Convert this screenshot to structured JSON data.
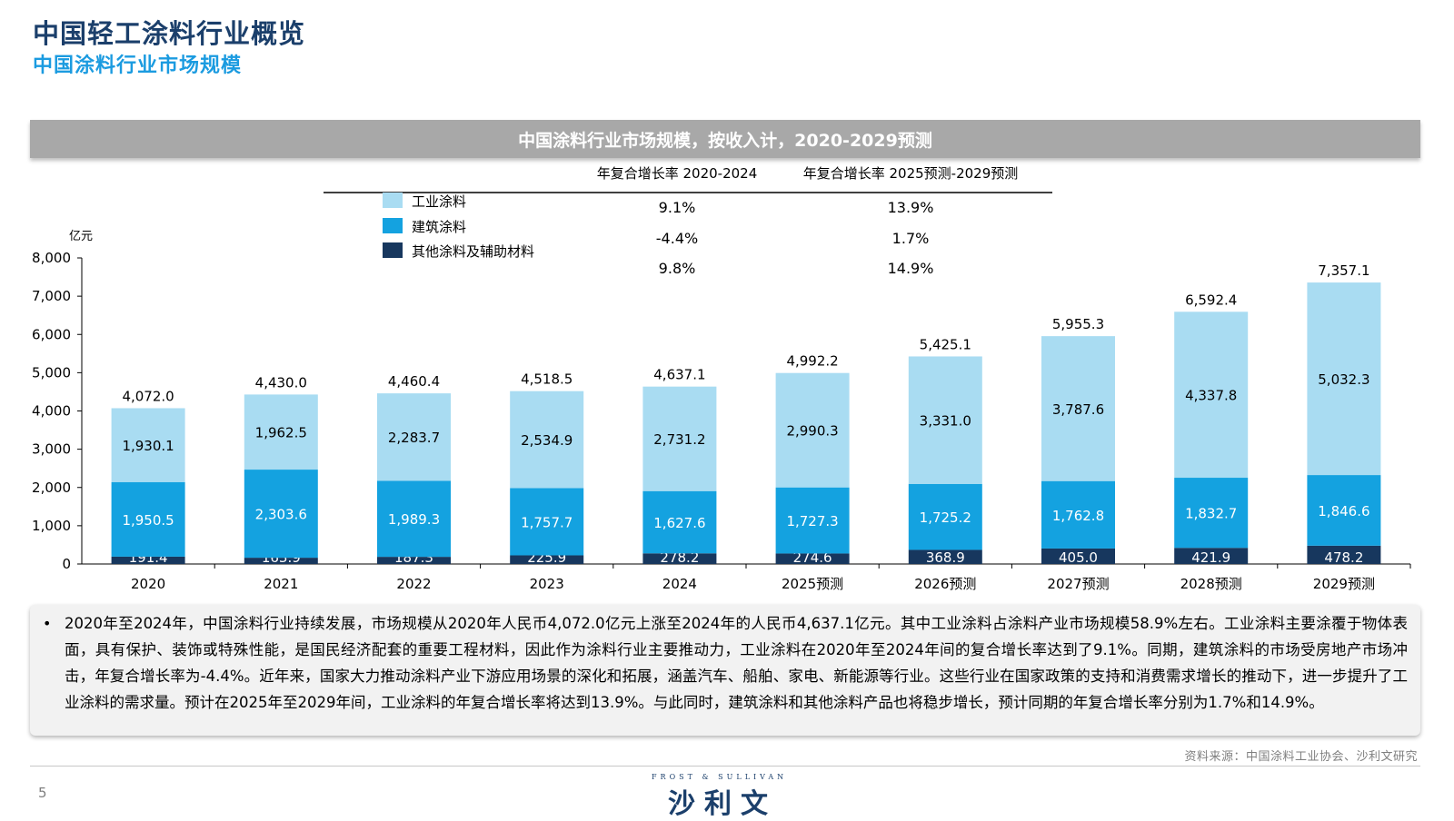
{
  "page": {
    "title": "中国轻工涂料行业概览",
    "subtitle": "中国涂料行业市场规模",
    "page_number": "5",
    "source": "资料来源：中国涂料工业协会、沙利文研究",
    "logo_top": "FROST & SULLIVAN",
    "logo_main": "沙利文"
  },
  "notes": {
    "bullet": "•",
    "text": "2020年至2024年，中国涂料行业持续发展，市场规模从2020年人民币4,072.0亿元上涨至2024年的人民币4,637.1亿元。其中工业涂料占涂料产业市场规模58.9%左右。工业涂料主要涂覆于物体表面，具有保护、装饰或特殊性能，是国民经济配套的重要工程材料，因此作为涂料行业主要推动力，工业涂料在2020年至2024年间的复合增长率达到了9.1%。同期，建筑涂料的市场受房地产市场冲击，年复合增长率为-4.4%。近年来，国家大力推动涂料产业下游应用场景的深化和拓展，涵盖汽车、船舶、家电、新能源等行业。这些行业在国家政策的支持和消费需求增长的推动下，进一步提升了工业涂料的需求量。预计在2025年至2029年间，工业涂料的年复合增长率将达到13.9%。与此同时，建筑涂料和其他涂料产品也将稳步增长，预计同期的年复合增长率分别为1.7%和14.9%。"
  },
  "chart_data": {
    "type": "bar",
    "stacked": true,
    "title": "中国涂料行业市场规模，按收入计，2020-2029预测",
    "ylabel": "亿元",
    "xlabel": "",
    "ylim": [
      0,
      8000
    ],
    "yticks": [
      "0",
      "1,000",
      "2,000",
      "3,000",
      "4,000",
      "5,000",
      "6,000",
      "7,000",
      "8,000"
    ],
    "grid": false,
    "legend_position": "top-left",
    "categories": [
      "2020",
      "2021",
      "2022",
      "2023",
      "2024",
      "2025预测",
      "2026预测",
      "2027预测",
      "2028预测",
      "2029预测"
    ],
    "series": [
      {
        "name": "其他涂料及辅助材料",
        "color": "#17375e",
        "values": [
          191.4,
          163.9,
          187.3,
          225.9,
          278.2,
          274.6,
          368.9,
          405.0,
          421.9,
          478.2
        ],
        "labels": [
          "191.4",
          "163.9",
          "187.3",
          "225.9",
          "278.2",
          "274.6",
          "368.9",
          "405.0",
          "421.9",
          "478.2"
        ],
        "label_color": "#ffffff"
      },
      {
        "name": "建筑涂料",
        "color": "#14a2e0",
        "values": [
          1950.5,
          2303.6,
          1989.3,
          1757.7,
          1627.6,
          1727.3,
          1725.2,
          1762.8,
          1832.7,
          1846.6
        ],
        "labels": [
          "1,950.5",
          "2,303.6",
          "1,989.3",
          "1,757.7",
          "1,627.6",
          "1,727.3",
          "1,725.2",
          "1,762.8",
          "1,832.7",
          "1,846.6"
        ],
        "label_color": "#ffffff"
      },
      {
        "name": "工业涂料",
        "color": "#a9dcf2",
        "values": [
          1930.1,
          1962.5,
          2283.7,
          2534.9,
          2731.2,
          2990.3,
          3331.0,
          3787.6,
          4337.8,
          5032.3
        ],
        "labels": [
          "1,930.1",
          "1,962.5",
          "2,283.7",
          "2,534.9",
          "2,731.2",
          "2,990.3",
          "3,331.0",
          "3,787.6",
          "4,337.8",
          "5,032.3"
        ],
        "label_color": "#000000"
      }
    ],
    "totals": [
      4072.0,
      4430.0,
      4460.4,
      4518.5,
      4637.1,
      4992.2,
      5425.1,
      5955.3,
      6592.4,
      7357.1
    ],
    "total_labels": [
      "4,072.0",
      "4,430.0",
      "4,460.4",
      "4,518.5",
      "4,637.1",
      "4,992.2",
      "5,425.1",
      "5,955.3",
      "6,592.4",
      "7,357.1"
    ],
    "legend": [
      {
        "name": "工业涂料",
        "color": "#a9dcf2"
      },
      {
        "name": "建筑涂料",
        "color": "#14a2e0"
      },
      {
        "name": "其他涂料及辅助材料",
        "color": "#17375e"
      }
    ],
    "cagr_table": {
      "headers": [
        "年复合增长率 2020-2024",
        "年复合增长率 2025预测-2029预测"
      ],
      "rows": [
        [
          "9.1%",
          "13.9%"
        ],
        [
          "-4.4%",
          "1.7%"
        ],
        [
          "9.8%",
          "14.9%"
        ]
      ]
    }
  }
}
